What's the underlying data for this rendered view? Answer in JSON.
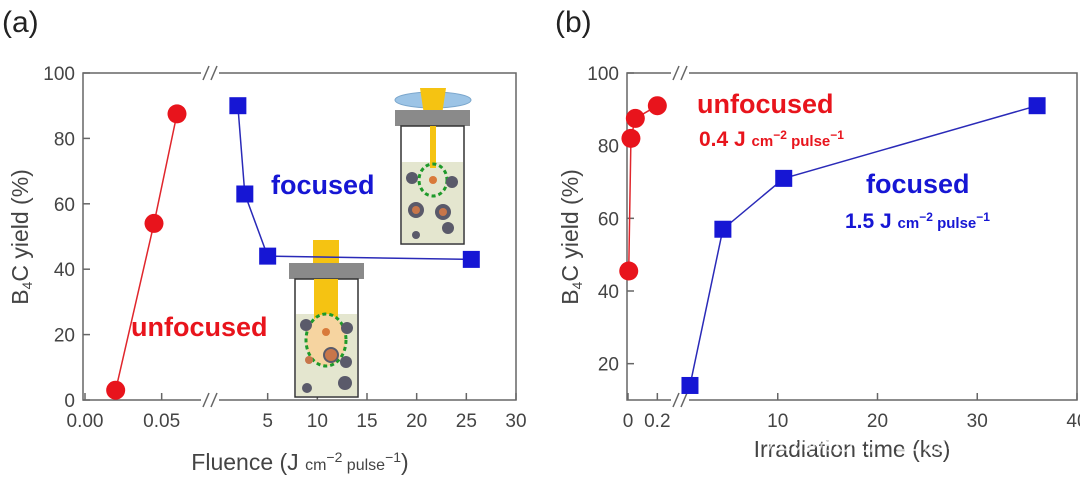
{
  "colors": {
    "red": "#e8141c",
    "red_line": "#e0262c",
    "blue": "#1616d4",
    "blue_line": "#2a2ab8",
    "text": "#444444"
  },
  "chart_data": [
    {
      "type": "scatter",
      "panel": "(a)",
      "ylabel_main": "B",
      "ylabel_sub": "4",
      "ylabel_rest": "C yield (%)",
      "xlabel_main": "Fluence (J ",
      "xlabel_unit_a": "cm",
      "xlabel_unit_b": "−2",
      "xlabel_unit_c": " pulse",
      "xlabel_unit_d": "−1",
      "xlabel_close": ")",
      "ylim": [
        0,
        100
      ],
      "yticks": [
        "0",
        "20",
        "40",
        "60",
        "80",
        "100"
      ],
      "x_break": true,
      "segment_left": {
        "xlim": [
          0.0,
          0.075
        ],
        "ticks": [
          "0.00",
          "0.05"
        ],
        "tick_values": [
          0.0,
          0.05
        ]
      },
      "segment_right": {
        "xlim": [
          0,
          30
        ],
        "ticks": [
          "5",
          "10",
          "15",
          "20",
          "25",
          "30"
        ],
        "tick_values": [
          5,
          10,
          15,
          20,
          25,
          30
        ]
      },
      "series": [
        {
          "name": "unfocused",
          "marker": "circle",
          "color": "red",
          "segment": "left",
          "x": [
            0.02,
            0.045,
            0.06
          ],
          "y": [
            3,
            54,
            87.5
          ]
        },
        {
          "name": "focused",
          "marker": "square",
          "color": "blue",
          "segment": "right",
          "x": [
            2,
            2.7,
            5,
            25.5
          ],
          "y": [
            90,
            63,
            44,
            43
          ]
        }
      ],
      "annotations": [
        "focused",
        "unfocused"
      ]
    },
    {
      "type": "scatter",
      "panel": "(b)",
      "ylabel_main": "B",
      "ylabel_sub": "4",
      "ylabel_rest": "C yield (%)",
      "xlabel": "Irradiation time (ks)",
      "ylim": [
        10,
        100
      ],
      "yticks": [
        "20",
        "40",
        "60",
        "80",
        "100"
      ],
      "x_break": true,
      "segment_left": {
        "xlim": [
          0,
          0.3
        ],
        "ticks": [
          "0",
          "0.2"
        ],
        "tick_values": [
          0,
          0.2
        ]
      },
      "segment_right": {
        "xlim": [
          0,
          40
        ],
        "ticks": [
          "10",
          "20",
          "30",
          "40"
        ],
        "tick_values": [
          10,
          20,
          30,
          40
        ]
      },
      "series": [
        {
          "name": "unfocused",
          "condition": "0.4 J cm−2 pulse−1",
          "marker": "circle",
          "color": "red",
          "segment": "left",
          "x": [
            0.005,
            0.02,
            0.05,
            0.2
          ],
          "y": [
            45.5,
            82,
            87.5,
            91
          ]
        },
        {
          "name": "focused",
          "condition": "1.5 J cm−2 pulse−1",
          "marker": "square",
          "color": "blue",
          "segment": "right",
          "x": [
            1.2,
            4.5,
            10.6,
            36
          ],
          "y": [
            14,
            57,
            71,
            91
          ]
        }
      ],
      "annotations": {
        "unfocused": "unfocused",
        "unfocused_cond_a": "0.4 J ",
        "unfocused_cond_b": "cm",
        "unfocused_cond_c": "−2",
        "unfocused_cond_d": " pulse",
        "unfocused_cond_e": "−1",
        "focused": "focused",
        "focused_cond_a": "1.5 J ",
        "focused_cond_b": "cm",
        "focused_cond_c": "−2",
        "focused_cond_d": " pulse",
        "focused_cond_e": "−1"
      }
    }
  ],
  "watermark": "江苏激光产业创新联盟"
}
